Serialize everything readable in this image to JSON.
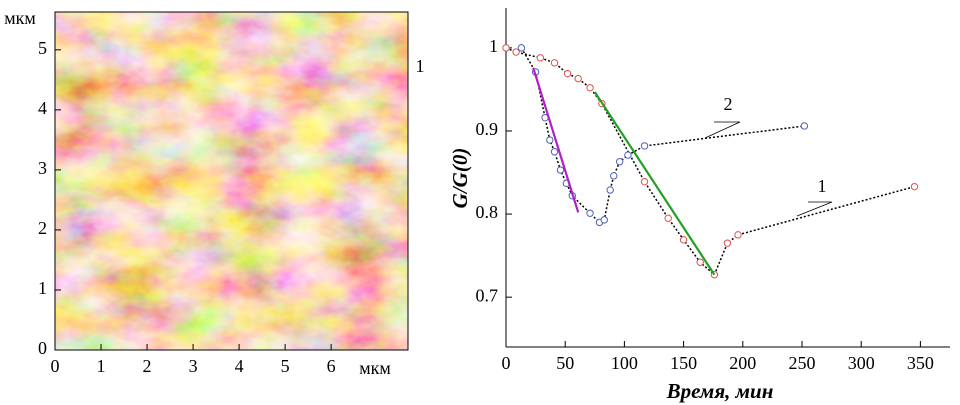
{
  "chart_data": [
    {
      "type": "image",
      "x_label": "мкм",
      "y_label": "мкм",
      "annotation": "1",
      "xlim": [
        0,
        7.67
      ],
      "ylim": [
        0,
        5.63
      ],
      "xticks": [
        0,
        1,
        2,
        3,
        4,
        5,
        6
      ],
      "yticks": [
        0,
        1,
        2,
        3,
        4,
        5
      ]
    },
    {
      "type": "scatter",
      "x_label": "Время, мин",
      "y_label": "G/G(0)",
      "xlim": [
        0,
        375
      ],
      "ylim": [
        0.64,
        1.048
      ],
      "xticks": [
        0,
        50,
        100,
        150,
        200,
        250,
        300,
        350
      ],
      "yticks": [
        0.7,
        0.8,
        0.9,
        1
      ],
      "annotations": [
        "1",
        "2"
      ],
      "series": [
        {
          "color": "#d9534f",
          "line_color": "#000000",
          "marker": "circle",
          "line": "dotted",
          "x": [
            0,
            8.5,
            29,
            41,
            52,
            61,
            71,
            81,
            117,
            137,
            150,
            164,
            176,
            187,
            196,
            345
          ],
          "values": [
            1.0,
            0.995,
            0.988,
            0.982,
            0.969,
            0.963,
            0.952,
            0.933,
            0.839,
            0.795,
            0.769,
            0.742,
            0.727,
            0.765,
            0.775,
            0.833
          ]
        },
        {
          "color": "#4a5fc1",
          "line_color": "#000000",
          "marker": "circle",
          "line": "dotted",
          "x": [
            13,
            25,
            33,
            37,
            41,
            46,
            51,
            56,
            71,
            79,
            83,
            88,
            91,
            96,
            103,
            117,
            252
          ],
          "values": [
            1.0,
            0.971,
            0.916,
            0.889,
            0.875,
            0.853,
            0.837,
            0.822,
            0.801,
            0.79,
            0.793,
            0.829,
            0.846,
            0.863,
            0.871,
            0.882,
            0.906
          ]
        },
        {
          "color": "#b020c8",
          "line": "solid",
          "x": [
            23,
            61
          ],
          "values": [
            0.976,
            0.802
          ]
        },
        {
          "color": "#22a022",
          "line": "solid",
          "x": [
            75,
            176
          ],
          "values": [
            0.947,
            0.727
          ]
        }
      ]
    }
  ]
}
